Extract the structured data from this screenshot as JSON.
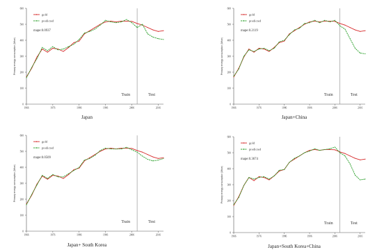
{
  "legend_labels": {
    "gold": "gold",
    "predicted": "predicted"
  },
  "colors": {
    "gold": "#d62728",
    "predicted": "#2ca02c",
    "axis": "#555555",
    "split": "#888888"
  },
  "y_axis_label": "Primary energy consumption (Mtoe)",
  "phase_labels": {
    "train": "Train",
    "test": "Test"
  },
  "chart_data": [
    {
      "type": "line",
      "caption": "Japan",
      "mape": "mape:0.0937",
      "x": [
        1966,
        1968,
        1970,
        1972,
        1974,
        1976,
        1978,
        1980,
        1982,
        1984,
        1986,
        1988,
        1990,
        1992,
        1994,
        1996,
        1998,
        2000,
        2002,
        2004,
        2006,
        2008,
        2010,
        2012,
        2014,
        2016,
        2018
      ],
      "xticks": [
        "1966",
        "1976",
        "1986",
        "1996",
        "2006",
        "2016"
      ],
      "yticks": [
        0,
        100,
        200,
        300,
        400,
        500,
        600
      ],
      "ylim": [
        0,
        600
      ],
      "xlim": [
        1966,
        2018
      ],
      "split_x": 2008,
      "series": [
        {
          "key": "gold",
          "values": [
            170,
            225,
            295,
            345,
            325,
            350,
            345,
            330,
            355,
            385,
            395,
            440,
            460,
            480,
            500,
            515,
            520,
            515,
            520,
            520,
            518,
            505,
            495,
            480,
            465,
            455,
            460
          ]
        },
        {
          "key": "predicted",
          "values": [
            165,
            230,
            285,
            355,
            335,
            360,
            340,
            345,
            360,
            375,
            405,
            445,
            455,
            470,
            495,
            525,
            515,
            510,
            515,
            530,
            510,
            480,
            500,
            440,
            420,
            410,
            405
          ]
        }
      ]
    },
    {
      "type": "line",
      "caption": "Japan+China",
      "mape": "mape:0.2119",
      "x": [
        1966,
        1968,
        1970,
        1972,
        1974,
        1976,
        1978,
        1980,
        1982,
        1984,
        1986,
        1988,
        1990,
        1992,
        1994,
        1996,
        1998,
        2000,
        2002,
        2004,
        2006,
        2008,
        2010,
        2012,
        2014,
        2016,
        2018
      ],
      "xticks": [
        "1966",
        "1976",
        "1986",
        "1996",
        "2006",
        "2016"
      ],
      "yticks": [
        0,
        100,
        200,
        300,
        400,
        500,
        600
      ],
      "ylim": [
        0,
        600
      ],
      "xlim": [
        1966,
        2018
      ],
      "split_x": 2008,
      "series": [
        {
          "key": "gold",
          "values": [
            170,
            225,
            295,
            345,
            325,
            350,
            345,
            330,
            355,
            385,
            395,
            440,
            460,
            480,
            500,
            515,
            520,
            515,
            520,
            520,
            518,
            505,
            495,
            480,
            465,
            455,
            460
          ]
        },
        {
          "key": "predicted",
          "values": [
            175,
            220,
            300,
            340,
            330,
            345,
            350,
            335,
            350,
            390,
            400,
            435,
            465,
            475,
            505,
            510,
            525,
            510,
            525,
            515,
            525,
            490,
            470,
            410,
            350,
            320,
            315
          ]
        }
      ]
    },
    {
      "type": "line",
      "caption": "Japan+ South Korea",
      "mape": "mape:0.0509",
      "x": [
        1966,
        1968,
        1970,
        1972,
        1974,
        1976,
        1978,
        1980,
        1982,
        1984,
        1986,
        1988,
        1990,
        1992,
        1994,
        1996,
        1998,
        2000,
        2002,
        2004,
        2006,
        2008,
        2010,
        2012,
        2014,
        2016,
        2018
      ],
      "xticks": [
        "1966",
        "1976",
        "1986",
        "1996",
        "2006",
        "2016"
      ],
      "yticks": [
        0,
        100,
        200,
        300,
        400,
        500,
        600
      ],
      "ylim": [
        0,
        600
      ],
      "xlim": [
        1966,
        2018
      ],
      "split_x": 2008,
      "series": [
        {
          "key": "gold",
          "values": [
            170,
            225,
            295,
            345,
            325,
            350,
            345,
            330,
            355,
            385,
            395,
            440,
            460,
            480,
            500,
            515,
            520,
            515,
            520,
            520,
            518,
            505,
            495,
            480,
            465,
            455,
            460
          ]
        },
        {
          "key": "predicted",
          "values": [
            165,
            230,
            290,
            350,
            330,
            355,
            340,
            340,
            360,
            380,
            400,
            445,
            455,
            475,
            505,
            520,
            515,
            515,
            515,
            525,
            510,
            495,
            470,
            450,
            440,
            445,
            455
          ]
        }
      ]
    },
    {
      "type": "line",
      "caption": "Japan+South Korea+China",
      "mape": "mape:0.3674",
      "x": [
        1966,
        1968,
        1970,
        1972,
        1974,
        1976,
        1978,
        1980,
        1982,
        1984,
        1986,
        1988,
        1990,
        1992,
        1994,
        1996,
        1998,
        2000,
        2002,
        2004,
        2006,
        2008,
        2010,
        2012,
        2014,
        2016,
        2018
      ],
      "xticks": [
        "1966",
        "1976",
        "1986",
        "1996",
        "2006",
        "2016"
      ],
      "yticks": [
        0,
        100,
        200,
        300,
        400,
        500,
        600
      ],
      "ylim": [
        0,
        600
      ],
      "xlim": [
        1966,
        2018
      ],
      "split_x": 2008,
      "series": [
        {
          "key": "gold",
          "values": [
            170,
            225,
            295,
            345,
            325,
            350,
            345,
            330,
            355,
            385,
            395,
            440,
            460,
            480,
            500,
            515,
            520,
            515,
            520,
            520,
            518,
            505,
            495,
            480,
            465,
            455,
            460
          ]
        },
        {
          "key": "predicted",
          "values": [
            175,
            220,
            295,
            345,
            335,
            345,
            350,
            335,
            355,
            390,
            395,
            440,
            465,
            480,
            500,
            510,
            525,
            515,
            520,
            525,
            535,
            500,
            480,
            430,
            360,
            330,
            335
          ]
        }
      ]
    }
  ]
}
